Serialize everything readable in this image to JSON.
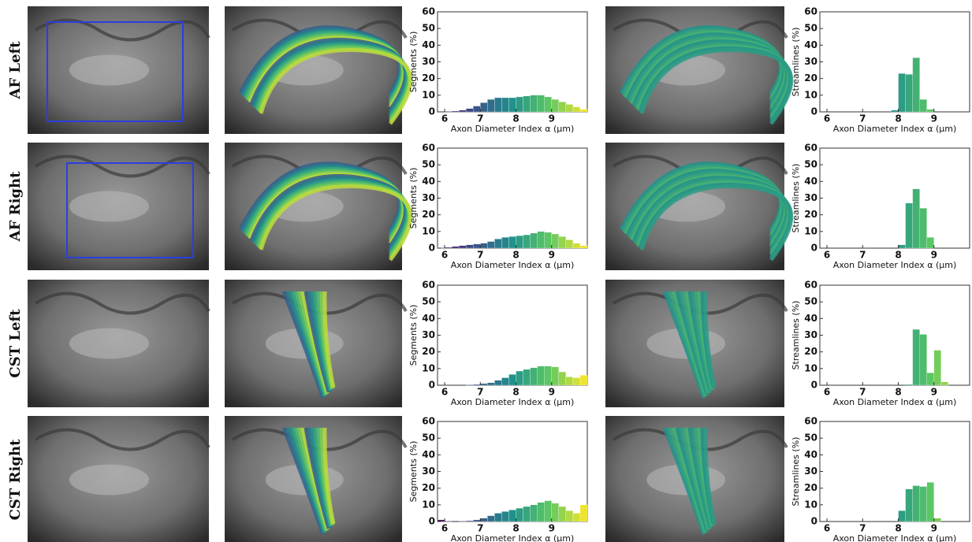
{
  "row_labels": [
    "AF Left",
    "AF Right",
    "CST Left",
    "CST Right"
  ],
  "chart_data": [
    {
      "type": "histogram",
      "xlabel": "Axon Diameter Index α (μm)",
      "ylabel": "Segments (%)",
      "colormap": "viridis",
      "bins": [
        5.8,
        6.0,
        6.2,
        6.4,
        6.6,
        6.8,
        7.0,
        7.2,
        7.4,
        7.6,
        7.8,
        8.0,
        8.2,
        8.4,
        8.6,
        8.8,
        9.0,
        9.2,
        9.4,
        9.6,
        9.8,
        10.0
      ],
      "values": [
        0,
        0.3,
        0.5,
        1,
        2,
        3.5,
        5.5,
        7.5,
        8.5,
        8.5,
        8.5,
        9,
        9.5,
        10,
        10,
        9,
        7.5,
        6,
        4.5,
        3,
        1.5
      ],
      "xlim": [
        5.8,
        10
      ],
      "ylim": [
        0,
        60
      ],
      "xticks": [
        6,
        7,
        8,
        9
      ],
      "yticks": [
        0,
        10,
        20,
        30,
        40,
        50,
        60
      ]
    },
    {
      "type": "histogram",
      "xlabel": "Axon Diameter Index α (μm)",
      "ylabel": "Streamlines (%)",
      "colormap": "viridis",
      "bins": [
        5.8,
        6.0,
        6.2,
        6.4,
        6.6,
        6.8,
        7.0,
        7.2,
        7.4,
        7.6,
        7.8,
        8.0,
        8.2,
        8.4,
        8.6,
        8.8,
        9.0,
        9.2,
        9.4,
        9.6,
        9.8,
        10.0
      ],
      "values": [
        0,
        0,
        0,
        0,
        0,
        0,
        0,
        0,
        0,
        0,
        1,
        23,
        22.5,
        32.5,
        7.5,
        1.5,
        0,
        0,
        0,
        0,
        0
      ],
      "xlim": [
        5.8,
        10
      ],
      "ylim": [
        0,
        60
      ],
      "xticks": [
        6,
        7,
        8,
        9
      ],
      "yticks": [
        0,
        10,
        20,
        30,
        40,
        50,
        60
      ]
    },
    {
      "type": "histogram",
      "xlabel": "Axon Diameter Index α (μm)",
      "ylabel": "Segments (%)",
      "colormap": "viridis",
      "bins": [
        5.8,
        6.0,
        6.2,
        6.4,
        6.6,
        6.8,
        7.0,
        7.2,
        7.4,
        7.6,
        7.8,
        8.0,
        8.2,
        8.4,
        8.6,
        8.8,
        9.0,
        9.2,
        9.4,
        9.6,
        9.8,
        10.0
      ],
      "values": [
        0.3,
        0.5,
        1,
        1.5,
        2,
        2.5,
        3,
        4,
        5.5,
        6.5,
        7,
        7.5,
        8,
        9,
        10,
        9.5,
        8.5,
        7,
        5,
        3,
        1.5
      ],
      "xlim": [
        5.8,
        10
      ],
      "ylim": [
        0,
        60
      ],
      "xticks": [
        6,
        7,
        8,
        9
      ],
      "yticks": [
        0,
        10,
        20,
        30,
        40,
        50,
        60
      ]
    },
    {
      "type": "histogram",
      "xlabel": "Axon Diameter Index α (μm)",
      "ylabel": "Streamlines (%)",
      "colormap": "viridis",
      "bins": [
        5.8,
        6.0,
        6.2,
        6.4,
        6.6,
        6.8,
        7.0,
        7.2,
        7.4,
        7.6,
        7.8,
        8.0,
        8.2,
        8.4,
        8.6,
        8.8,
        9.0,
        9.2,
        9.4,
        9.6,
        9.8,
        10.0
      ],
      "values": [
        0,
        0,
        0,
        0,
        0,
        0,
        0,
        0,
        0,
        0,
        0,
        2,
        27,
        35.5,
        24,
        6.5,
        0,
        0,
        0,
        0,
        0
      ],
      "xlim": [
        5.8,
        10
      ],
      "ylim": [
        0,
        60
      ],
      "xticks": [
        6,
        7,
        8,
        9
      ],
      "yticks": [
        0,
        10,
        20,
        30,
        40,
        50,
        60
      ]
    },
    {
      "type": "histogram",
      "xlabel": "Axon Diameter Index α (μm)",
      "ylabel": "Segments (%)",
      "colormap": "viridis",
      "bins": [
        5.8,
        6.0,
        6.2,
        6.4,
        6.6,
        6.8,
        7.0,
        7.2,
        7.4,
        7.6,
        7.8,
        8.0,
        8.2,
        8.4,
        8.6,
        8.8,
        9.0,
        9.2,
        9.4,
        9.6,
        9.8,
        10.0
      ],
      "values": [
        0,
        0,
        0,
        0,
        0.3,
        0.5,
        1,
        1.5,
        3,
        4.5,
        6.5,
        8.5,
        9.5,
        10.5,
        11.5,
        11.5,
        11,
        8,
        5,
        4.5,
        6
      ],
      "xlim": [
        5.8,
        10
      ],
      "ylim": [
        0,
        60
      ],
      "xticks": [
        6,
        7,
        8,
        9
      ],
      "yticks": [
        0,
        10,
        20,
        30,
        40,
        50,
        60
      ]
    },
    {
      "type": "histogram",
      "xlabel": "Axon Diameter Index α (μm)",
      "ylabel": "Streamlines (%)",
      "colormap": "viridis",
      "bins": [
        5.8,
        6.0,
        6.2,
        6.4,
        6.6,
        6.8,
        7.0,
        7.2,
        7.4,
        7.6,
        7.8,
        8.0,
        8.2,
        8.4,
        8.6,
        8.8,
        9.0,
        9.2,
        9.4,
        9.6,
        9.8,
        10.0
      ],
      "values": [
        0,
        0,
        0,
        0,
        0,
        0,
        0,
        0,
        0,
        0,
        0,
        0,
        0.5,
        33.5,
        30.5,
        7.5,
        21,
        2,
        0,
        0,
        0
      ],
      "xlim": [
        5.8,
        10
      ],
      "ylim": [
        0,
        60
      ],
      "xticks": [
        6,
        7,
        8,
        9
      ],
      "yticks": [
        0,
        10,
        20,
        30,
        40,
        50,
        60
      ]
    },
    {
      "type": "histogram",
      "xlabel": "Axon Diameter Index α (μm)",
      "ylabel": "Segments (%)",
      "colormap": "viridis",
      "bins": [
        5.8,
        6.0,
        6.2,
        6.4,
        6.6,
        6.8,
        7.0,
        7.2,
        7.4,
        7.6,
        7.8,
        8.0,
        8.2,
        8.4,
        8.6,
        8.8,
        9.0,
        9.2,
        9.4,
        9.6,
        9.8,
        10.0
      ],
      "values": [
        1,
        0.3,
        0,
        0.3,
        0.5,
        1,
        2,
        3.5,
        5,
        6,
        7,
        8,
        9,
        10,
        11.5,
        12.5,
        11,
        9,
        6.5,
        5,
        10
      ],
      "xlim": [
        5.8,
        10
      ],
      "ylim": [
        0,
        60
      ],
      "xticks": [
        6,
        7,
        8,
        9
      ],
      "yticks": [
        0,
        10,
        20,
        30,
        40,
        50,
        60
      ]
    },
    {
      "type": "histogram",
      "xlabel": "Axon Diameter Index α (μm)",
      "ylabel": "Streamlines (%)",
      "colormap": "viridis",
      "bins": [
        5.8,
        6.0,
        6.2,
        6.4,
        6.6,
        6.8,
        7.0,
        7.2,
        7.4,
        7.6,
        7.8,
        8.0,
        8.2,
        8.4,
        8.6,
        8.8,
        9.0,
        9.2,
        9.4,
        9.6,
        9.8,
        10.0
      ],
      "values": [
        0,
        0,
        0,
        0,
        0,
        0,
        0,
        0,
        0,
        0,
        0,
        6.5,
        19.5,
        21.5,
        21,
        23.5,
        2,
        0,
        0,
        0,
        0
      ],
      "xlim": [
        5.8,
        10
      ],
      "ylim": [
        0,
        60
      ],
      "xticks": [
        6,
        7,
        8,
        9
      ],
      "yticks": [
        0,
        10,
        20,
        30,
        40,
        50,
        60
      ]
    }
  ]
}
